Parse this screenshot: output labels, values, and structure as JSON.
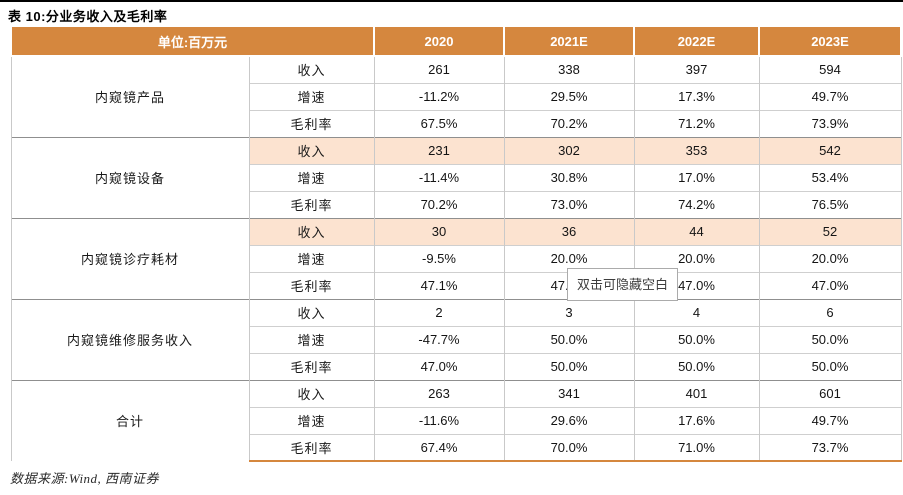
{
  "page": {
    "title": "表 10:分业务收入及毛利率",
    "source_note": "数据来源:Wind, 西南证券"
  },
  "tooltip": {
    "text": "双击可隐藏空白"
  },
  "colors": {
    "header_bg": "#D5873E",
    "highlight_row_bg": "#FCE3D0",
    "table_bottom_border": "#D5873E",
    "top_rule": "#000000"
  },
  "table": {
    "unit_header": "单位:百万元",
    "year_headers": [
      "2020",
      "2021E",
      "2022E",
      "2023E"
    ],
    "metric_labels": [
      "收入",
      "增速",
      "毛利率"
    ],
    "groups": [
      {
        "name": "内窥镜产品",
        "revenue_highlighted": false,
        "rows": [
          [
            "261",
            "338",
            "397",
            "594"
          ],
          [
            "-11.2%",
            "29.5%",
            "17.3%",
            "49.7%"
          ],
          [
            "67.5%",
            "70.2%",
            "71.2%",
            "73.9%"
          ]
        ]
      },
      {
        "name": "内窥镜设备",
        "revenue_highlighted": true,
        "rows": [
          [
            "231",
            "302",
            "353",
            "542"
          ],
          [
            "-11.4%",
            "30.8%",
            "17.0%",
            "53.4%"
          ],
          [
            "70.2%",
            "73.0%",
            "74.2%",
            "76.5%"
          ]
        ]
      },
      {
        "name": "内窥镜诊疗耗材",
        "revenue_highlighted": true,
        "rows": [
          [
            "30",
            "36",
            "44",
            "52"
          ],
          [
            "-9.5%",
            "20.0%",
            "20.0%",
            "20.0%"
          ],
          [
            "47.1%",
            "47.0%",
            "47.0%",
            "47.0%"
          ]
        ]
      },
      {
        "name": "内窥镜维修服务收入",
        "revenue_highlighted": false,
        "rows": [
          [
            "2",
            "3",
            "4",
            "6"
          ],
          [
            "-47.7%",
            "50.0%",
            "50.0%",
            "50.0%"
          ],
          [
            "47.0%",
            "50.0%",
            "50.0%",
            "50.0%"
          ]
        ]
      },
      {
        "name": "合计",
        "revenue_highlighted": false,
        "rows": [
          [
            "263",
            "341",
            "401",
            "601"
          ],
          [
            "-11.6%",
            "29.6%",
            "17.6%",
            "49.7%"
          ],
          [
            "67.4%",
            "70.0%",
            "71.0%",
            "73.7%"
          ]
        ]
      }
    ]
  }
}
